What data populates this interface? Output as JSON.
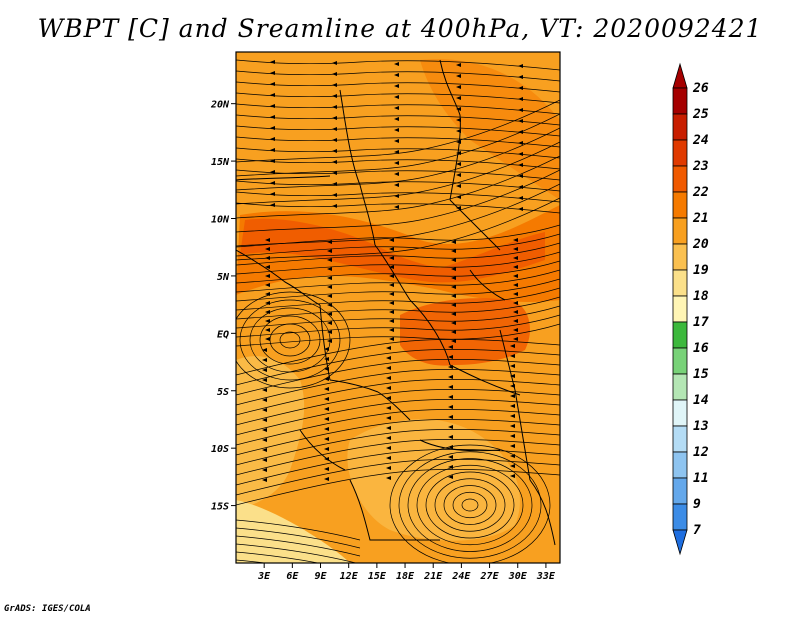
{
  "title": "WBPT [C] and Sreamline at 400hPa, VT: 2020092421",
  "credit": "GrADS: IGES/COLA",
  "map": {
    "lat_ticks": [
      {
        "value": 20,
        "label": "20N"
      },
      {
        "value": 15,
        "label": "15N"
      },
      {
        "value": 10,
        "label": "10N"
      },
      {
        "value": 5,
        "label": "5N"
      },
      {
        "value": 0,
        "label": "EQ"
      },
      {
        "value": -5,
        "label": "5S"
      },
      {
        "value": -10,
        "label": "10S"
      },
      {
        "value": -15,
        "label": "15S"
      }
    ],
    "lon_ticks": [
      {
        "value": 3,
        "label": "3E"
      },
      {
        "value": 6,
        "label": "6E"
      },
      {
        "value": 9,
        "label": "9E"
      },
      {
        "value": 12,
        "label": "12E"
      },
      {
        "value": 15,
        "label": "15E"
      },
      {
        "value": 18,
        "label": "18E"
      },
      {
        "value": 21,
        "label": "21E"
      },
      {
        "value": 24,
        "label": "24E"
      },
      {
        "value": 27,
        "label": "27E"
      },
      {
        "value": 30,
        "label": "30E"
      },
      {
        "value": 33,
        "label": "33E"
      }
    ],
    "lon_range": [
      0,
      34.5
    ],
    "lat_range": [
      -20,
      24.5
    ]
  },
  "colorbar": {
    "levels": [
      "26",
      "25",
      "24",
      "23",
      "22",
      "21",
      "20",
      "19",
      "18",
      "17",
      "16",
      "15",
      "14",
      "13",
      "12",
      "11",
      "9",
      "7"
    ],
    "colors": [
      "#a50000",
      "#c81e00",
      "#e03a00",
      "#f05a00",
      "#f57a00",
      "#f8a020",
      "#fac050",
      "#fbe08a",
      "#fff5b5",
      "#3cb83c",
      "#78d278",
      "#b4e6b4",
      "#e0f5f8",
      "#b4dcf5",
      "#8ec4f0",
      "#64a8eb",
      "#3c8ce6",
      "#1e6ee0"
    ],
    "extend": "both"
  },
  "legend_colors": {
    "field_base": "#f8a020",
    "field_light": "#fac050",
    "field_pale": "#fbe08a",
    "field_warm": "#f57a00",
    "field_hot": "#f05a00",
    "streamline": "#000000"
  }
}
